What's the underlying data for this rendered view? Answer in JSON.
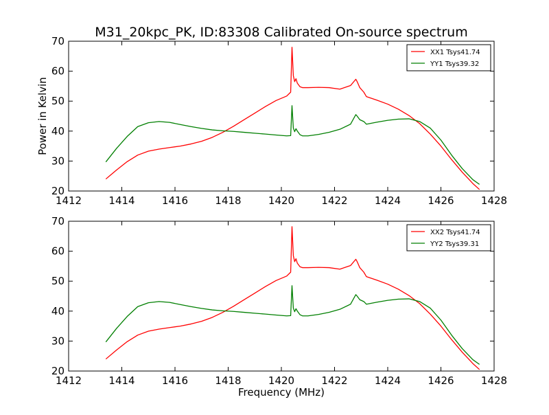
{
  "title": "M31_20kpc_PK, ID:83308 Calibrated On-source spectrum",
  "colors": {
    "xx": "#ff0000",
    "yy": "#007f00",
    "axis": "#000000",
    "background": "#ffffff"
  },
  "chart_data": [
    {
      "type": "line",
      "title": "M31_20kpc_PK, ID:83308 Calibrated On-source spectrum",
      "xlabel": "",
      "ylabel": "Power in Kelvin",
      "xlim": [
        1412,
        1428
      ],
      "ylim": [
        20,
        70
      ],
      "xticks": [
        1412,
        1414,
        1416,
        1418,
        1420,
        1422,
        1424,
        1426,
        1428
      ],
      "yticks": [
        20,
        30,
        40,
        50,
        60,
        70
      ],
      "legend_position": "top-right",
      "grid": false,
      "series": [
        {
          "name": "XX1 Tsys41.74",
          "color": "#ff0000",
          "x": [
            1413.4,
            1413.8,
            1414.2,
            1414.6,
            1415.0,
            1415.4,
            1415.8,
            1416.2,
            1416.6,
            1417.0,
            1417.4,
            1417.8,
            1418.2,
            1418.6,
            1419.0,
            1419.4,
            1419.8,
            1420.2,
            1420.35,
            1420.4,
            1420.45,
            1420.5,
            1420.55,
            1420.6,
            1420.7,
            1420.8,
            1421.0,
            1421.4,
            1421.8,
            1422.2,
            1422.6,
            1422.8,
            1422.85,
            1422.95,
            1423.1,
            1423.2,
            1423.6,
            1424.0,
            1424.4,
            1424.8,
            1425.2,
            1425.6,
            1426.0,
            1426.4,
            1426.8,
            1427.2,
            1427.45
          ],
          "values": [
            24.0,
            27.0,
            29.8,
            32.0,
            33.3,
            34.0,
            34.5,
            35.0,
            35.7,
            36.6,
            37.9,
            39.6,
            41.6,
            43.8,
            46.0,
            48.2,
            50.2,
            51.7,
            53.0,
            68.0,
            58.5,
            56.5,
            57.5,
            56.0,
            54.8,
            54.5,
            54.5,
            54.6,
            54.5,
            54.0,
            55.2,
            57.3,
            56.5,
            54.5,
            53.0,
            51.5,
            50.3,
            49.0,
            47.3,
            45.2,
            42.5,
            39.0,
            35.0,
            30.5,
            26.3,
            22.5,
            20.5
          ]
        },
        {
          "name": "YY1 Tsys39.32",
          "color": "#007f00",
          "x": [
            1413.4,
            1413.8,
            1414.2,
            1414.6,
            1415.0,
            1415.4,
            1415.8,
            1416.2,
            1416.6,
            1417.0,
            1417.4,
            1417.8,
            1418.2,
            1418.6,
            1419.0,
            1419.4,
            1419.8,
            1420.2,
            1420.35,
            1420.4,
            1420.45,
            1420.5,
            1420.55,
            1420.6,
            1420.7,
            1420.8,
            1421.0,
            1421.4,
            1421.8,
            1422.2,
            1422.6,
            1422.8,
            1422.85,
            1422.95,
            1423.1,
            1423.2,
            1423.6,
            1424.0,
            1424.4,
            1424.8,
            1425.2,
            1425.6,
            1426.0,
            1426.4,
            1426.8,
            1427.2,
            1427.45
          ],
          "values": [
            29.7,
            34.2,
            38.2,
            41.5,
            42.8,
            43.2,
            42.9,
            42.2,
            41.5,
            40.9,
            40.4,
            40.1,
            39.9,
            39.6,
            39.3,
            39.0,
            38.7,
            38.4,
            38.5,
            48.5,
            41.0,
            39.8,
            40.8,
            40.0,
            38.8,
            38.4,
            38.4,
            38.9,
            39.6,
            40.6,
            42.3,
            45.5,
            45.0,
            43.8,
            43.2,
            42.3,
            43.0,
            43.6,
            44.0,
            44.1,
            43.2,
            41.0,
            37.0,
            32.0,
            27.5,
            23.8,
            22.2
          ]
        }
      ]
    },
    {
      "type": "line",
      "title": "",
      "xlabel": "Frequency (MHz)",
      "ylabel": "",
      "xlim": [
        1412,
        1428
      ],
      "ylim": [
        20,
        70
      ],
      "xticks": [
        1412,
        1414,
        1416,
        1418,
        1420,
        1422,
        1424,
        1426,
        1428
      ],
      "yticks": [
        20,
        30,
        40,
        50,
        60,
        70
      ],
      "legend_position": "top-right",
      "grid": false,
      "series": [
        {
          "name": "XX2 Tsys41.74",
          "color": "#ff0000",
          "x": [
            1413.4,
            1413.8,
            1414.2,
            1414.6,
            1415.0,
            1415.4,
            1415.8,
            1416.2,
            1416.6,
            1417.0,
            1417.4,
            1417.8,
            1418.2,
            1418.6,
            1419.0,
            1419.4,
            1419.8,
            1420.2,
            1420.35,
            1420.4,
            1420.45,
            1420.5,
            1420.55,
            1420.6,
            1420.7,
            1420.8,
            1421.0,
            1421.4,
            1421.8,
            1422.2,
            1422.6,
            1422.8,
            1422.85,
            1422.95,
            1423.1,
            1423.2,
            1423.6,
            1424.0,
            1424.4,
            1424.8,
            1425.2,
            1425.6,
            1426.0,
            1426.4,
            1426.8,
            1427.2,
            1427.45
          ],
          "values": [
            24.0,
            27.0,
            29.8,
            32.0,
            33.3,
            34.0,
            34.5,
            35.0,
            35.7,
            36.6,
            37.9,
            39.6,
            41.6,
            43.8,
            46.0,
            48.2,
            50.2,
            51.7,
            53.0,
            68.2,
            58.5,
            56.5,
            57.5,
            56.0,
            54.8,
            54.5,
            54.5,
            54.6,
            54.5,
            54.0,
            55.2,
            57.3,
            56.5,
            54.5,
            53.0,
            51.5,
            50.3,
            49.0,
            47.3,
            45.2,
            42.5,
            39.0,
            35.0,
            30.5,
            26.3,
            22.5,
            20.5
          ]
        },
        {
          "name": "YY2 Tsys39.31",
          "color": "#007f00",
          "x": [
            1413.4,
            1413.8,
            1414.2,
            1414.6,
            1415.0,
            1415.4,
            1415.8,
            1416.2,
            1416.6,
            1417.0,
            1417.4,
            1417.8,
            1418.2,
            1418.6,
            1419.0,
            1419.4,
            1419.8,
            1420.2,
            1420.35,
            1420.4,
            1420.45,
            1420.5,
            1420.55,
            1420.6,
            1420.7,
            1420.8,
            1421.0,
            1421.4,
            1421.8,
            1422.2,
            1422.6,
            1422.8,
            1422.85,
            1422.95,
            1423.1,
            1423.2,
            1423.6,
            1424.0,
            1424.4,
            1424.8,
            1425.2,
            1425.6,
            1426.0,
            1426.4,
            1426.8,
            1427.2,
            1427.45
          ],
          "values": [
            29.7,
            34.2,
            38.2,
            41.5,
            42.8,
            43.2,
            42.9,
            42.2,
            41.5,
            40.9,
            40.4,
            40.1,
            39.9,
            39.6,
            39.3,
            39.0,
            38.7,
            38.4,
            38.5,
            48.5,
            41.0,
            39.8,
            40.8,
            40.0,
            38.8,
            38.4,
            38.4,
            38.9,
            39.6,
            40.6,
            42.3,
            45.5,
            45.0,
            43.8,
            43.2,
            42.3,
            43.0,
            43.6,
            44.0,
            44.1,
            43.2,
            41.0,
            37.0,
            32.0,
            27.5,
            23.8,
            22.2
          ]
        }
      ]
    }
  ]
}
